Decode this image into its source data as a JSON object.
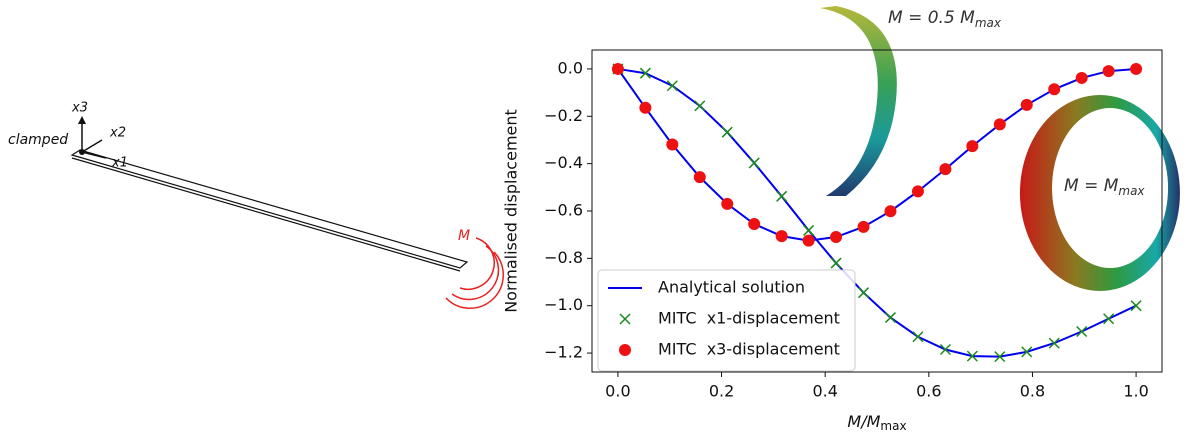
{
  "chart_data": {
    "type": "line",
    "x_label": [
      "M/M",
      "max"
    ],
    "y_label": "Normalised displacement",
    "annotations": [
      [
        "M = 0.5 M",
        "max"
      ],
      [
        "M = M",
        "max"
      ]
    ],
    "x": [
      0,
      0.053,
      0.105,
      0.158,
      0.211,
      0.263,
      0.316,
      0.368,
      0.421,
      0.474,
      0.526,
      0.579,
      0.632,
      0.684,
      0.737,
      0.789,
      0.842,
      0.895,
      0.947,
      1.0
    ],
    "series": [
      {
        "name": "Analytical solution",
        "color": "#0000ee",
        "style": "line",
        "values": [
          0,
          -0.018,
          -0.071,
          -0.156,
          -0.267,
          -0.397,
          -0.538,
          -0.682,
          -0.82,
          -0.945,
          -1.05,
          -1.131,
          -1.185,
          -1.213,
          -1.215,
          -1.195,
          -1.158,
          -1.109,
          -1.055,
          -1.0
        ]
      },
      {
        "color": "#0000ee",
        "style": "line",
        "values": [
          0,
          -0.164,
          -0.319,
          -0.457,
          -0.57,
          -0.655,
          -0.706,
          -0.725,
          -0.71,
          -0.667,
          -0.601,
          -0.517,
          -0.423,
          -0.326,
          -0.234,
          -0.152,
          -0.086,
          -0.038,
          -0.009,
          0
        ]
      },
      {
        "name": "MITC  x1-displacement",
        "color": "#1a8a1a",
        "style": "cross",
        "values": [
          0,
          -0.018,
          -0.071,
          -0.156,
          -0.267,
          -0.397,
          -0.538,
          -0.682,
          -0.82,
          -0.945,
          -1.05,
          -1.131,
          -1.185,
          -1.213,
          -1.215,
          -1.195,
          -1.158,
          -1.109,
          -1.055,
          -1.0
        ]
      },
      {
        "name": "MITC  x3-displacement",
        "color": "#ee1111",
        "style": "dot",
        "values": [
          0,
          -0.164,
          -0.319,
          -0.457,
          -0.57,
          -0.655,
          -0.706,
          -0.725,
          -0.71,
          -0.667,
          -0.601,
          -0.517,
          -0.423,
          -0.326,
          -0.234,
          -0.152,
          -0.086,
          -0.038,
          -0.009,
          0
        ]
      }
    ],
    "xlim": [
      -0.05,
      1.05
    ],
    "ylim": [
      -1.28,
      0.08
    ],
    "xticks": [
      {
        "value": 0,
        "label": "0.0"
      },
      {
        "value": 0.2,
        "label": "0.2"
      },
      {
        "value": 0.4,
        "label": "0.4"
      },
      {
        "value": 0.6,
        "label": "0.6"
      },
      {
        "value": 0.8,
        "label": "0.8"
      },
      {
        "value": 1,
        "label": "1.0"
      }
    ],
    "yticks": [
      {
        "value": 0,
        "label": "0.0"
      },
      {
        "value": -0.2,
        "label": "−0.2"
      },
      {
        "value": -0.4,
        "label": "−0.4"
      },
      {
        "value": -0.6,
        "label": "−0.6"
      },
      {
        "value": -0.8,
        "label": "−0.8"
      },
      {
        "value": -1.0,
        "label": "−1.0"
      },
      {
        "value": -1.2,
        "label": "−1.2"
      }
    ],
    "legend": "lower left"
  },
  "diagram": {
    "clamped": "clamped",
    "x3": "x3",
    "x2": "x2",
    "x1": "x1",
    "moment": "M"
  }
}
